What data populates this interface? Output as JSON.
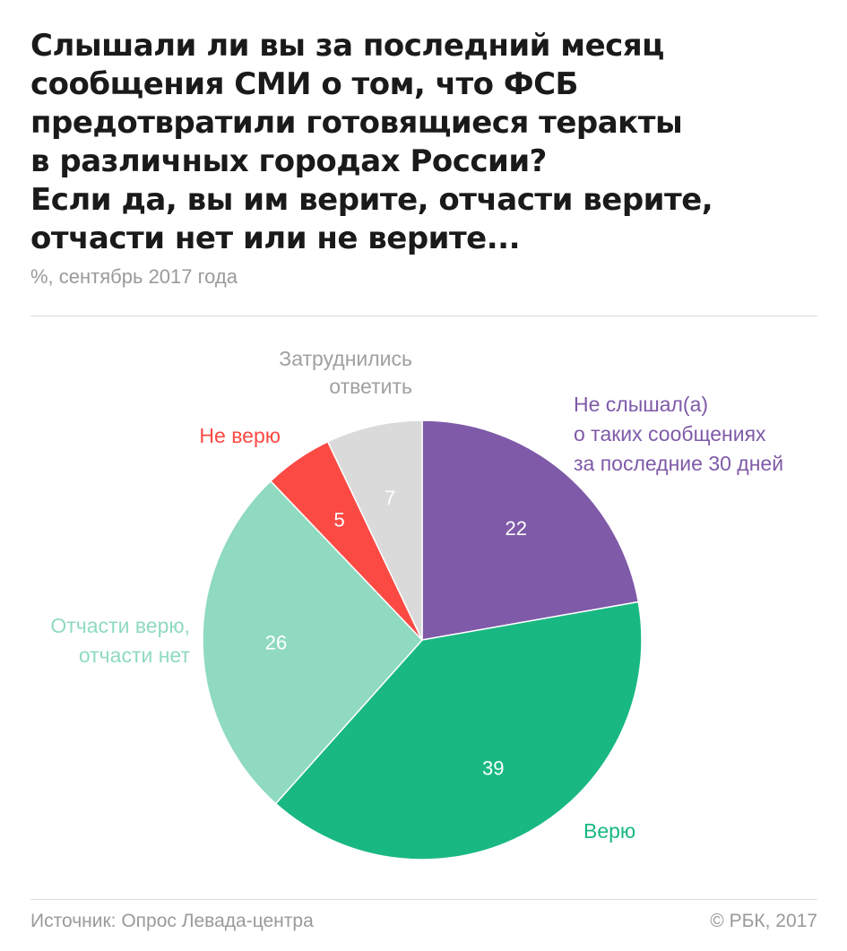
{
  "header": {
    "title_lines": [
      "Слышали ли вы за последний месяц",
      "сообщения СМИ о том, что ФСБ",
      "предотвратили готовящиеся теракты",
      "в различных городах России?",
      "Если да, вы им верите, отчасти верите,",
      "отчасти нет или не верите..."
    ],
    "subtitle": "%, сентябрь 2017 года"
  },
  "footer": {
    "source": "Источник: Опрос Левада-центра",
    "copyright": "© РБК, 2017"
  },
  "chart_data": {
    "type": "pie",
    "unit": "%",
    "start_angle_deg": 0,
    "direction": "clockwise",
    "slices": [
      {
        "name_lines": [
          "Не слышал(а)",
          "о таких сообщениях",
          "за последние 30 дней"
        ],
        "value": 22,
        "color": "#7f5aa8",
        "label_color": "#7f5aa8",
        "value_color": "#ffffff"
      },
      {
        "name_lines": [
          "Верю"
        ],
        "value": 39,
        "color": "#19b882",
        "label_color": "#19b882",
        "value_color": "#ffffff"
      },
      {
        "name_lines": [
          "Отчасти верю,",
          "отчасти нет"
        ],
        "value": 26,
        "color": "#8fdac0",
        "label_color": "#8fdac0",
        "value_color": "#ffffff"
      },
      {
        "name_lines": [
          "Не верю"
        ],
        "value": 5,
        "color": "#fb4a44",
        "label_color": "#fb4a44",
        "value_color": "#ffffff"
      },
      {
        "name_lines": [
          "Затруднились",
          "ответить"
        ],
        "value": 7,
        "color": "#dadada",
        "label_color": "#a0a0a0",
        "value_color": "#ffffff"
      }
    ]
  }
}
